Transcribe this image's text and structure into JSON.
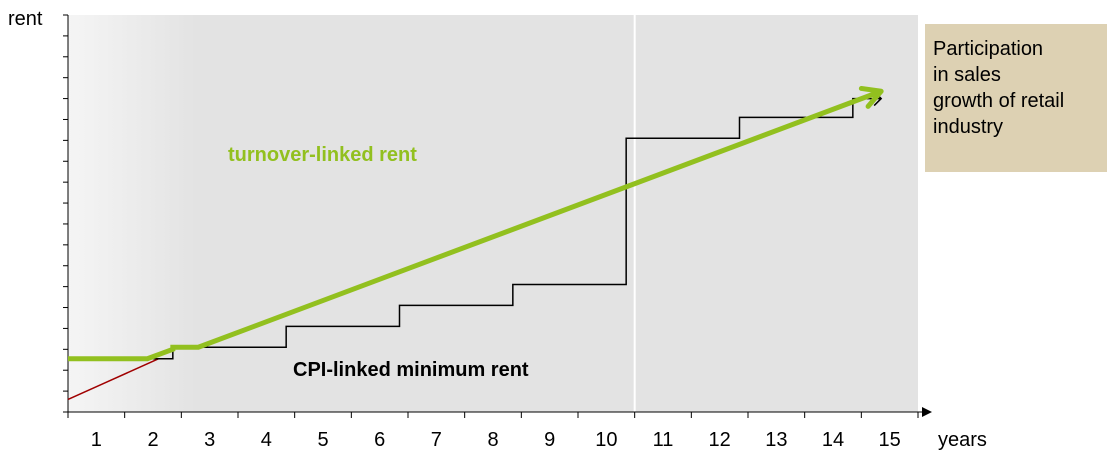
{
  "chart_data": {
    "type": "line",
    "ylabel": "rent",
    "xlabel": "years",
    "x_ticks": [
      "1",
      "2",
      "3",
      "4",
      "5",
      "6",
      "7",
      "8",
      "9",
      "10",
      "11",
      "12",
      "13",
      "14",
      "15"
    ],
    "series": [
      {
        "name": "turnover-linked rent",
        "color": "#92c01f",
        "shape": "flat then linear growth",
        "points": [
          [
            0,
            2.55
          ],
          [
            1.4,
            2.55
          ],
          [
            1.85,
            3.0
          ],
          [
            1.85,
            3.1
          ],
          [
            2.3,
            3.1
          ],
          [
            14.35,
            15.35
          ]
        ]
      },
      {
        "name": "CPI-linked minimum rent",
        "color": "#000000",
        "shape": "step",
        "points": [
          [
            1.4,
            2.55
          ],
          [
            1.85,
            2.55
          ],
          [
            1.85,
            3.1
          ],
          [
            3.85,
            3.1
          ],
          [
            3.85,
            4.1
          ],
          [
            5.85,
            4.1
          ],
          [
            5.85,
            5.1
          ],
          [
            7.85,
            5.1
          ],
          [
            7.85,
            6.1
          ],
          [
            9.85,
            6.1
          ],
          [
            9.85,
            13.1
          ],
          [
            11.85,
            13.1
          ],
          [
            11.85,
            14.1
          ],
          [
            13.85,
            14.1
          ],
          [
            13.85,
            15.0
          ],
          [
            14.35,
            15.0
          ]
        ]
      },
      {
        "name": "trend",
        "color": "#a00000",
        "shape": "linear",
        "points": [
          [
            0,
            0.6
          ],
          [
            1.6,
            2.55
          ]
        ]
      }
    ],
    "annotation": {
      "callout_lines": [
        "Participation",
        "in sales",
        "growth of retail",
        "industry"
      ],
      "callout_color": "#ddd1b3"
    },
    "x_range": [
      0,
      15
    ],
    "y_range": [
      0,
      19
    ],
    "grid": false,
    "reference_line_at_year": 10
  }
}
